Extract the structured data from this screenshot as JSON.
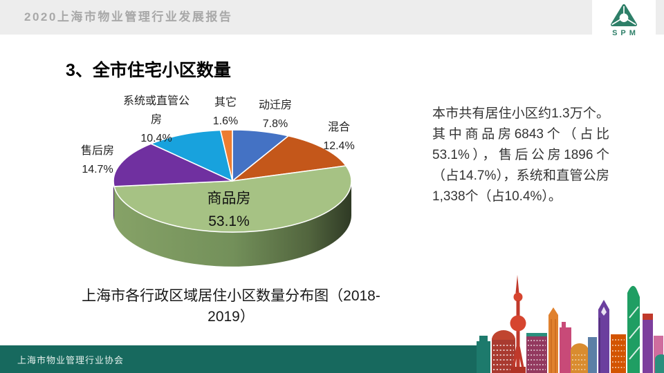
{
  "header": {
    "report_title": "2020上海市物业管理行业发展报告",
    "logo_text": "SPM"
  },
  "page": {
    "title": "3、全市住宅小区数量"
  },
  "chart_data": {
    "type": "pie",
    "style": "3d",
    "title": "上海市各行政区域居住小区数量分布图（2018-2019）",
    "direction": "clockwise",
    "start_angle_deg": 0,
    "legend_position": "none",
    "slices": [
      {
        "name": "动迁房",
        "value": 7.8,
        "pct_label": "7.8%",
        "color": "#4472c4"
      },
      {
        "name": "混合",
        "value": 12.4,
        "pct_label": "12.4%",
        "color": "#c4571a"
      },
      {
        "name": "商品房",
        "value": 53.1,
        "pct_label": "53.1%",
        "color": "#a6c284"
      },
      {
        "name": "售后房",
        "value": 14.7,
        "pct_label": "14.7%",
        "color": "#7030a0"
      },
      {
        "name": "系统或直管公房",
        "value": 10.4,
        "pct_label": "10.4%",
        "color": "#18a2dd"
      },
      {
        "name": "其它",
        "value": 1.6,
        "pct_label": "1.6%",
        "color": "#ed7d31"
      }
    ]
  },
  "summary": {
    "paragraph": "本市共有居住小区约1.3万个。其中商品房6843个（占比53.1%），售后公房1896个（占14.7%），系统和直管公房1,338个（占10.4%）。"
  },
  "footer": {
    "org_name": "上海市物业管理行业协会"
  },
  "colors": {
    "header_bg": "#ededed",
    "header_text": "#a8a8a8",
    "footer_bg": "#17695e",
    "logo_green": "#2e7f68",
    "pie_side_green_gradient": [
      "#86a267",
      "#73905a",
      "#2f3a25"
    ]
  }
}
